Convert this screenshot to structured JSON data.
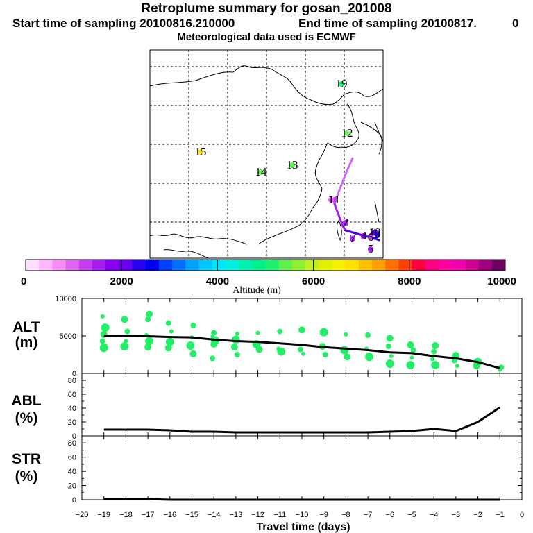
{
  "header": {
    "title": "Retroplume summary for gosan_201008",
    "start_sampling": "Start time of sampling 20100816.210000",
    "end_sampling": "End time of sampling 20100817.",
    "end_sampling_suffix": "0",
    "met_data": "Meteorological data used is ECMWF"
  },
  "colors": {
    "ink": "#000000",
    "green_marker": "#22ee66",
    "trajectory_low": "#5500ff",
    "trajectory_high": "#cc66ff"
  },
  "map": {
    "labels": [
      {
        "text": "19",
        "alt": 5200
      },
      {
        "text": "12",
        "alt": 5400
      },
      {
        "text": "15",
        "alt": 6800
      },
      {
        "text": "14",
        "alt": 5500
      },
      {
        "text": "13",
        "alt": 5300
      },
      {
        "text": "11",
        "alt": 1200
      },
      {
        "text": "1",
        "alt": 1000
      },
      {
        "text": "2",
        "alt": 1500
      },
      {
        "text": "10",
        "alt": 2000
      },
      {
        "text": "7",
        "alt": 1500
      },
      {
        "text": "3",
        "alt": 1800
      },
      {
        "text": "6",
        "alt": 1200
      },
      {
        "text": "9",
        "alt": 2300
      },
      {
        "text": "5",
        "alt": 1400
      }
    ]
  },
  "colorbar": {
    "ticks": [
      "0",
      "2000",
      "4000",
      "6000",
      "8000",
      "10000"
    ],
    "label": "Altitude (m)",
    "colors": [
      "#ffe0ff",
      "#ffb8ff",
      "#f58ff5",
      "#e066f0",
      "#c83cf0",
      "#a81ef0",
      "#8a00f0",
      "#6a00f0",
      "#2a00f0",
      "#0000f0",
      "#0040ff",
      "#0070ff",
      "#00a0ff",
      "#00c8ff",
      "#00e6ff",
      "#00f0e0",
      "#00f0b0",
      "#00f090",
      "#20f070",
      "#60f050",
      "#90f030",
      "#c0f020",
      "#e0f000",
      "#f8f000",
      "#ffe000",
      "#ffc000",
      "#ffa000",
      "#ff7000",
      "#ff4000",
      "#ff0040",
      "#ff0080",
      "#ff00a0",
      "#f000b0",
      "#d00090",
      "#a00080",
      "#700060"
    ]
  },
  "chart_data": [
    {
      "type": "scatter",
      "name": "ALT",
      "ylabel": "ALT",
      "unit": "(m)",
      "ylim": [
        0,
        10000
      ],
      "ytick_labels": [
        "10000",
        "5000",
        "0"
      ],
      "line": {
        "x": [
          -19,
          -18,
          -17,
          -16,
          -15,
          -14,
          -13,
          -12,
          -11,
          -10,
          -9,
          -8,
          -7,
          -6,
          -5,
          -4,
          -3,
          -2,
          -1
        ],
        "y": [
          5050,
          5000,
          4950,
          4850,
          4800,
          4500,
          4300,
          4200,
          4000,
          3800,
          3500,
          3300,
          3100,
          2800,
          2700,
          2300,
          2000,
          1500,
          700
        ]
      },
      "scatter": {
        "x": [
          -19,
          -19,
          -19,
          -19,
          -19,
          -19,
          -18,
          -18,
          -18,
          -18,
          -17,
          -17,
          -17,
          -17,
          -17,
          -16,
          -16,
          -16,
          -16,
          -15,
          -15,
          -15,
          -15,
          -14,
          -14,
          -14,
          -14,
          -14,
          -13,
          -13,
          -13,
          -13,
          -12,
          -12,
          -12,
          -11,
          -11,
          -11,
          -10,
          -10,
          -10,
          -9,
          -9,
          -9,
          -8,
          -8,
          -8,
          -7,
          -7,
          -7,
          -6,
          -6,
          -6,
          -6,
          -5,
          -5,
          -5,
          -5,
          -4,
          -4,
          -4,
          -4,
          -3,
          -3,
          -3,
          -2,
          -2,
          -1,
          -1
        ],
        "y": [
          7600,
          6100,
          5200,
          4300,
          3700,
          3400,
          7200,
          5600,
          4300,
          3600,
          7900,
          7200,
          5100,
          4300,
          3500,
          6700,
          5600,
          4200,
          3400,
          6400,
          4800,
          3700,
          2600,
          5400,
          4900,
          4400,
          3900,
          2000,
          5300,
          4500,
          3500,
          2500,
          5400,
          3900,
          3200,
          5600,
          3300,
          2900,
          5800,
          3200,
          2600,
          5500,
          3600,
          2500,
          5200,
          3100,
          2200,
          5100,
          3300,
          2200,
          4700,
          3600,
          2300,
          1300,
          3800,
          3100,
          2100,
          1100,
          3700,
          2900,
          1900,
          1100,
          2400,
          1700,
          1000,
          1500,
          1000,
          800,
          500
        ]
      }
    },
    {
      "type": "line",
      "name": "ABL",
      "ylabel": "ABL",
      "unit": "(%)",
      "ylim": [
        0,
        90
      ],
      "ytick_labels": [
        "80",
        "60",
        "40",
        "20",
        "0"
      ],
      "x": [
        -19,
        -18,
        -17,
        -16,
        -15,
        -14,
        -13,
        -12,
        -11,
        -10,
        -9,
        -8,
        -7,
        -6,
        -5,
        -4,
        -3,
        -2,
        -1
      ],
      "y": [
        9,
        9,
        9,
        8,
        6,
        6,
        5,
        5,
        5,
        5,
        5,
        5,
        5,
        6,
        7,
        10,
        7,
        20,
        41
      ]
    },
    {
      "type": "line",
      "name": "STR",
      "ylabel": "STR",
      "unit": "(%)",
      "ylim": [
        0,
        90
      ],
      "ytick_labels": [
        "80",
        "60",
        "40",
        "20",
        "0"
      ],
      "x": [
        -19,
        -18,
        -17,
        -16,
        -15,
        -14,
        -13,
        -12,
        -11,
        -10,
        -9,
        -8,
        -7,
        -6,
        -5,
        -4,
        -3,
        -2,
        -1
      ],
      "y": [
        1,
        1,
        1,
        0,
        0,
        0,
        0,
        0,
        0,
        0,
        0,
        0,
        0,
        0,
        0,
        0,
        0,
        0,
        0
      ]
    }
  ],
  "xaxis": {
    "label": "Travel time (days)",
    "ticks": [
      "−20",
      "−19",
      "−18",
      "−17",
      "−16",
      "−15",
      "−14",
      "−13",
      "−12",
      "−11",
      "−10",
      "−9",
      "−8",
      "−7",
      "−6",
      "−5",
      "−4",
      "−3",
      "−2",
      "−1",
      "0"
    ]
  }
}
